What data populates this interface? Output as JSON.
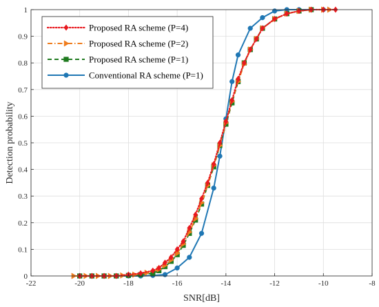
{
  "chart_data": {
    "type": "line",
    "title": "",
    "xlabel": "SNR[dB]",
    "ylabel": "Detection probability",
    "xlim": [
      -22,
      -8
    ],
    "ylim": [
      0,
      1
    ],
    "xticks": [
      -22,
      -20,
      -18,
      -16,
      -14,
      -12,
      -10,
      -8
    ],
    "yticks": [
      0,
      0.1,
      0.2,
      0.3,
      0.4,
      0.5,
      0.6,
      0.7,
      0.8,
      0.9,
      1
    ],
    "grid": true,
    "legend_position": "top-left",
    "series": [
      {
        "name": "Proposed RA scheme (P=4)",
        "color": "#e8191f",
        "line_style": "dotted",
        "marker": "diamond",
        "x": [
          -20.0,
          -19.5,
          -19.0,
          -18.5,
          -18.0,
          -17.5,
          -17.0,
          -16.75,
          -16.5,
          -16.25,
          -16.0,
          -15.75,
          -15.5,
          -15.25,
          -15.0,
          -14.75,
          -14.5,
          -14.25,
          -14.0,
          -13.75,
          -13.5,
          -13.25,
          -13.0,
          -12.75,
          -12.5,
          -12.0,
          -11.5,
          -11.0,
          -10.5,
          -10.0,
          -9.5
        ],
        "y": [
          0.0,
          0.0,
          0.0,
          0.0,
          0.005,
          0.01,
          0.02,
          0.03,
          0.05,
          0.07,
          0.1,
          0.13,
          0.18,
          0.23,
          0.29,
          0.35,
          0.42,
          0.5,
          0.58,
          0.66,
          0.74,
          0.8,
          0.85,
          0.89,
          0.93,
          0.965,
          0.985,
          0.995,
          1.0,
          1.0,
          1.0
        ]
      },
      {
        "name": "Proposed RA scheme (P=2)",
        "color": "#ef7d1e",
        "line_style": "dashdot",
        "marker": "triangle-right",
        "x": [
          -20.25,
          -19.75,
          -19.25,
          -18.75,
          -18.25,
          -17.75,
          -17.25,
          -16.75,
          -16.5,
          -16.25,
          -16.0,
          -15.75,
          -15.5,
          -15.25,
          -15.0,
          -14.75,
          -14.5,
          -14.25,
          -14.0,
          -13.75,
          -13.5,
          -13.25,
          -13.0,
          -12.75,
          -12.5,
          -12.0,
          -11.5,
          -11.0,
          -10.5,
          -10.0,
          -9.75
        ],
        "y": [
          0.0,
          0.0,
          0.0,
          0.0,
          0.002,
          0.005,
          0.012,
          0.025,
          0.04,
          0.06,
          0.085,
          0.12,
          0.165,
          0.215,
          0.275,
          0.34,
          0.415,
          0.49,
          0.575,
          0.655,
          0.73,
          0.795,
          0.85,
          0.89,
          0.93,
          0.965,
          0.985,
          0.995,
          1.0,
          1.0,
          1.0
        ]
      },
      {
        "name": "Proposed RA scheme (P=1)",
        "color": "#1e7a1e",
        "line_style": "dashed",
        "marker": "square",
        "x": [
          -20.0,
          -19.5,
          -19.0,
          -18.5,
          -18.0,
          -17.5,
          -17.0,
          -16.75,
          -16.5,
          -16.25,
          -16.0,
          -15.75,
          -15.5,
          -15.25,
          -15.0,
          -14.75,
          -14.5,
          -14.25,
          -14.0,
          -13.75,
          -13.5,
          -13.25,
          -13.0,
          -12.75,
          -12.5,
          -12.0,
          -11.5,
          -11.0,
          -10.5
        ],
        "y": [
          0.0,
          0.0,
          0.0,
          0.0,
          0.002,
          0.005,
          0.01,
          0.02,
          0.035,
          0.055,
          0.08,
          0.115,
          0.16,
          0.21,
          0.27,
          0.34,
          0.41,
          0.49,
          0.57,
          0.65,
          0.73,
          0.8,
          0.85,
          0.89,
          0.93,
          0.965,
          0.985,
          0.995,
          1.0
        ]
      },
      {
        "name": "Conventional RA scheme (P=1)",
        "color": "#1f77b4",
        "line_style": "solid",
        "marker": "circle",
        "x": [
          -20.0,
          -19.5,
          -19.0,
          -18.5,
          -18.0,
          -17.5,
          -17.0,
          -16.5,
          -16.0,
          -15.5,
          -15.0,
          -14.5,
          -14.25,
          -14.0,
          -13.75,
          -13.5,
          -13.0,
          -12.5,
          -12.0,
          -11.5,
          -11.0,
          -10.5,
          -10.0
        ],
        "y": [
          0.0,
          0.0,
          0.0,
          0.0,
          0.0,
          0.0,
          0.002,
          0.005,
          0.03,
          0.07,
          0.16,
          0.33,
          0.45,
          0.59,
          0.73,
          0.83,
          0.93,
          0.97,
          0.995,
          1.0,
          1.0,
          1.0,
          1.0
        ]
      }
    ]
  }
}
